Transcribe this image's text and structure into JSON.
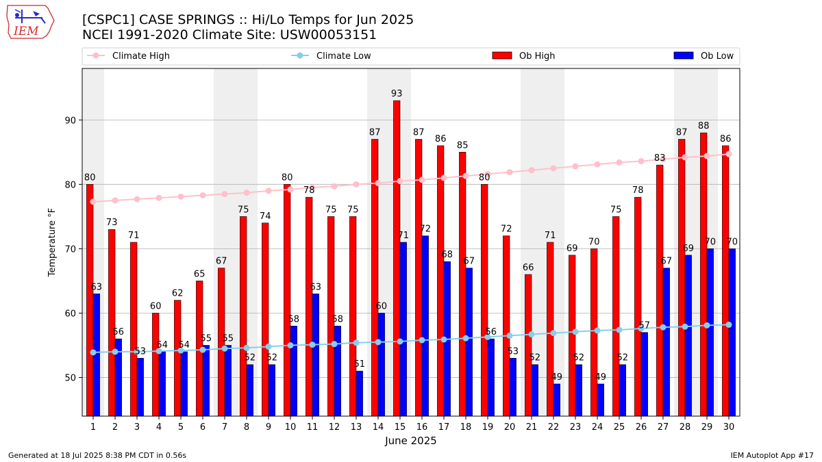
{
  "header": {
    "title_line1": "[CSPC1] CASE SPRINGS :: Hi/Lo Temps for Jun 2025",
    "title_line2": "NCEI 1991-2020 Climate Site: USW00053151"
  },
  "logo": {
    "text": "IEM"
  },
  "footer": {
    "generated": "Generated at 18 Jul 2025 8:38 PM CDT in 0.56s",
    "app": "IEM Autoplot App #17"
  },
  "colors": {
    "ob_high": "#ff0000",
    "ob_low": "#0000ff",
    "climate_high": "#ffc0cb",
    "climate_low": "#87ceeb",
    "weekend_shade": "#efefef",
    "grid": "#b0b0b0"
  },
  "chart_data": {
    "type": "bar",
    "xlabel": "June 2025",
    "ylabel": "Temperature °F",
    "ylim": [
      44,
      98
    ],
    "yticks": [
      50,
      60,
      70,
      80,
      90
    ],
    "grid": "horizontal",
    "legend_position": "top",
    "categories": [
      "1",
      "2",
      "3",
      "4",
      "5",
      "6",
      "7",
      "8",
      "9",
      "10",
      "11",
      "12",
      "13",
      "14",
      "15",
      "16",
      "17",
      "18",
      "19",
      "20",
      "21",
      "22",
      "23",
      "24",
      "25",
      "26",
      "27",
      "28",
      "29",
      "30"
    ],
    "shaded_days": [
      1,
      7,
      8,
      14,
      15,
      21,
      22,
      28,
      29
    ],
    "series": [
      {
        "name": "Ob High",
        "type": "bar",
        "color": "#ff0000",
        "values": [
          80,
          73,
          71,
          60,
          62,
          65,
          67,
          75,
          74,
          80,
          78,
          75,
          75,
          87,
          93,
          87,
          86,
          85,
          80,
          72,
          66,
          71,
          69,
          70,
          75,
          78,
          83,
          87,
          88,
          86
        ]
      },
      {
        "name": "Ob Low",
        "type": "bar",
        "color": "#0000ff",
        "values": [
          63,
          56,
          53,
          54,
          54,
          55,
          55,
          52,
          52,
          58,
          63,
          58,
          51,
          60,
          71,
          72,
          68,
          67,
          56,
          53,
          52,
          49,
          52,
          49,
          52,
          57,
          67,
          69,
          70,
          70
        ]
      },
      {
        "name": "Climate High",
        "type": "line",
        "color": "#ffc0cb",
        "values": [
          77.3,
          77.5,
          77.7,
          77.9,
          78.1,
          78.3,
          78.5,
          78.7,
          79.0,
          79.2,
          79.5,
          79.7,
          80.0,
          80.2,
          80.5,
          80.7,
          81.0,
          81.3,
          81.6,
          81.9,
          82.2,
          82.5,
          82.8,
          83.1,
          83.4,
          83.6,
          83.9,
          84.2,
          84.4,
          84.7
        ]
      },
      {
        "name": "Climate Low",
        "type": "line",
        "color": "#87ceeb",
        "values": [
          53.9,
          54.0,
          54.0,
          54.1,
          54.2,
          54.3,
          54.5,
          54.6,
          54.8,
          55.0,
          55.1,
          55.2,
          55.4,
          55.5,
          55.6,
          55.8,
          55.9,
          56.1,
          56.3,
          56.5,
          56.7,
          56.9,
          57.1,
          57.3,
          57.4,
          57.6,
          57.8,
          57.9,
          58.1,
          58.2
        ]
      }
    ]
  }
}
